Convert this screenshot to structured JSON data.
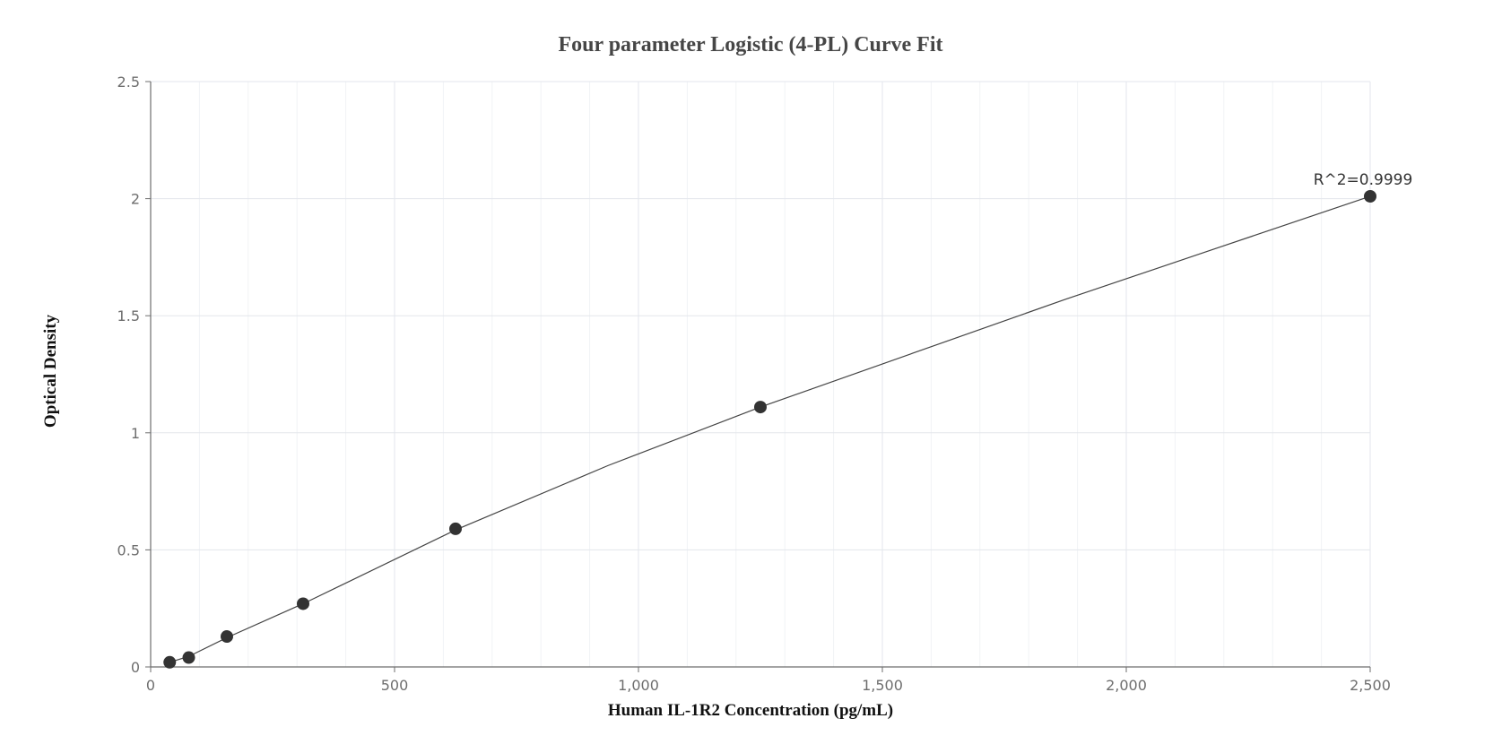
{
  "chart_data": {
    "type": "scatter",
    "title": "Four parameter Logistic (4-PL) Curve Fit",
    "xlabel": "Human IL-1R2 Concentration (pg/mL)",
    "ylabel": "Optical Density",
    "xlim": [
      0,
      2500
    ],
    "ylim": [
      0,
      2.5
    ],
    "x_ticks": [
      0,
      500,
      1000,
      1500,
      2000,
      2500
    ],
    "x_tick_labels": [
      "0",
      "500",
      "1,000",
      "1,500",
      "2,000",
      "2,500"
    ],
    "y_ticks": [
      0,
      0.5,
      1,
      1.5,
      2,
      2.5
    ],
    "y_tick_labels": [
      "0",
      "0.5",
      "1",
      "1.5",
      "2",
      "2.5"
    ],
    "x_minor_step": 100,
    "grid": true,
    "series": [
      {
        "points": [
          {
            "x": 39.06,
            "y": 0.02
          },
          {
            "x": 78.13,
            "y": 0.04
          },
          {
            "x": 156.25,
            "y": 0.13
          },
          {
            "x": 312.5,
            "y": 0.27
          },
          {
            "x": 625,
            "y": 0.59
          },
          {
            "x": 1250,
            "y": 1.11
          },
          {
            "x": 2500,
            "y": 2.01
          }
        ],
        "curve": [
          {
            "x": 39.06,
            "y": 0.02
          },
          {
            "x": 78.13,
            "y": 0.045
          },
          {
            "x": 156.25,
            "y": 0.125
          },
          {
            "x": 312.5,
            "y": 0.27
          },
          {
            "x": 625,
            "y": 0.585
          },
          {
            "x": 937.5,
            "y": 0.86
          },
          {
            "x": 1250,
            "y": 1.11
          },
          {
            "x": 1562.5,
            "y": 1.34
          },
          {
            "x": 1875,
            "y": 1.57
          },
          {
            "x": 2187.5,
            "y": 1.79
          },
          {
            "x": 2500,
            "y": 2.01
          }
        ]
      }
    ],
    "annotation": {
      "text": "R^2=0.9999",
      "x": 2500,
      "y": 2.01
    },
    "colors": {
      "point": "#333333",
      "curve": "#444444",
      "grid_major": "#e3e6ec",
      "grid_minor": "#f1f3f6",
      "axis": "#6e6e6e"
    }
  }
}
